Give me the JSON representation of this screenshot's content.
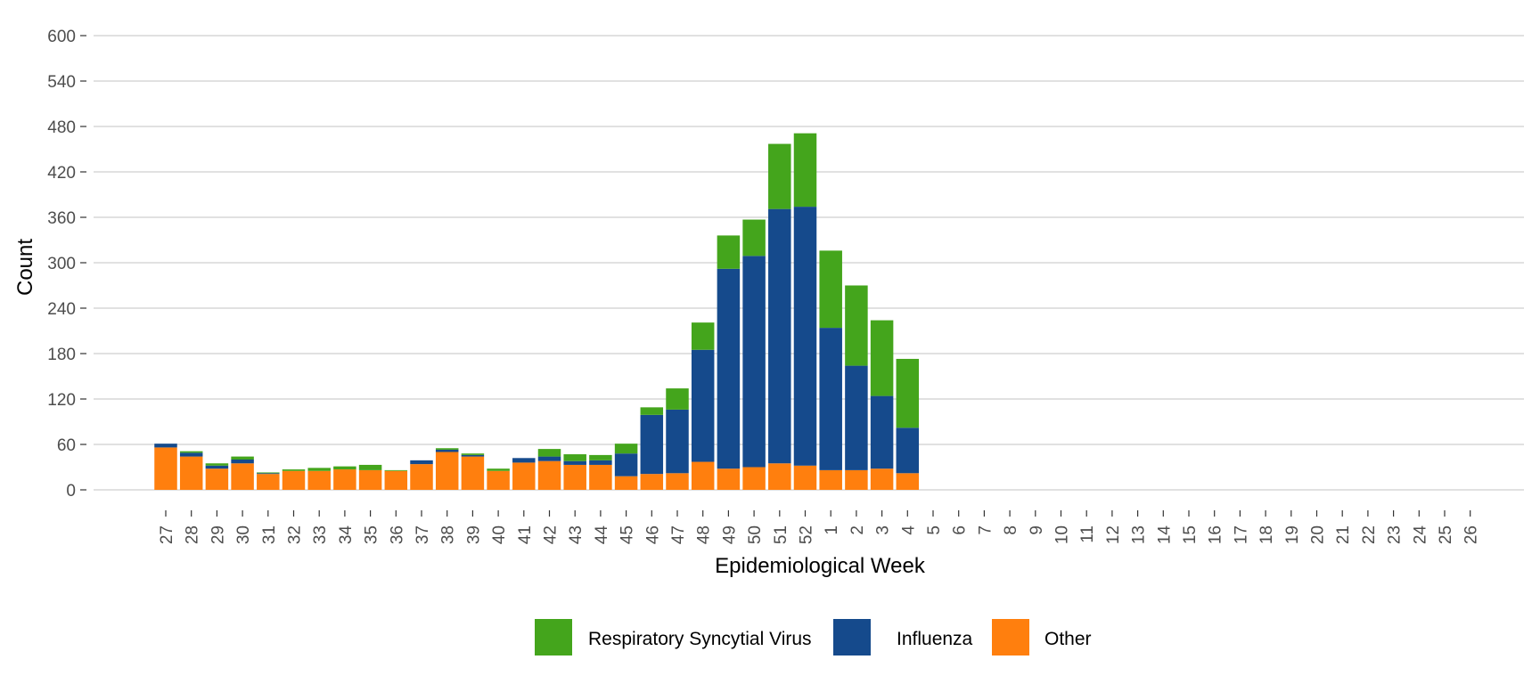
{
  "chart_data": {
    "type": "bar",
    "stacked": true,
    "title": "",
    "xlabel": "Epidemiological Week",
    "ylabel": "Count",
    "ylim": [
      0,
      600
    ],
    "yticks": [
      0,
      60,
      120,
      180,
      240,
      300,
      360,
      420,
      480,
      540,
      600
    ],
    "grid": true,
    "legend_position": "bottom",
    "categories": [
      "27",
      "28",
      "29",
      "30",
      "31",
      "32",
      "33",
      "34",
      "35",
      "36",
      "37",
      "38",
      "39",
      "40",
      "41",
      "42",
      "43",
      "44",
      "45",
      "46",
      "47",
      "48",
      "49",
      "50",
      "51",
      "52",
      "1",
      "2",
      "3",
      "4",
      "5",
      "6",
      "7",
      "8",
      "9",
      "10",
      "11",
      "12",
      "13",
      "14",
      "15",
      "16",
      "17",
      "18",
      "19",
      "20",
      "21",
      "22",
      "23",
      "24",
      "25",
      "26"
    ],
    "series": [
      {
        "name": "Other",
        "color": "#ff7f0e",
        "values": [
          56,
          44,
          28,
          35,
          21,
          25,
          25,
          27,
          26,
          25,
          34,
          50,
          44,
          25,
          36,
          38,
          33,
          33,
          18,
          21,
          22,
          37,
          28,
          30,
          35,
          32,
          26,
          26,
          28,
          22,
          null,
          null,
          null,
          null,
          null,
          null,
          null,
          null,
          null,
          null,
          null,
          null,
          null,
          null,
          null,
          null,
          null,
          null,
          null,
          null,
          null,
          null
        ]
      },
      {
        "name": "Influenza",
        "color": "#154a8c",
        "values": [
          5,
          5,
          4,
          5,
          1,
          0,
          0,
          0,
          0,
          0,
          5,
          3,
          2,
          0,
          6,
          6,
          5,
          6,
          30,
          78,
          84,
          148,
          264,
          279,
          336,
          342,
          188,
          138,
          96,
          60,
          null,
          null,
          null,
          null,
          null,
          null,
          null,
          null,
          null,
          null,
          null,
          null,
          null,
          null,
          null,
          null,
          null,
          null,
          null,
          null,
          null,
          null
        ]
      },
      {
        "name": "Respiratory Syncytial Virus",
        "color": "#44a51c",
        "values": [
          0,
          2,
          3,
          4,
          1,
          2,
          4,
          4,
          7,
          1,
          0,
          2,
          2,
          3,
          0,
          10,
          9,
          7,
          13,
          10,
          28,
          36,
          44,
          48,
          86,
          97,
          102,
          106,
          100,
          91,
          null,
          null,
          null,
          null,
          null,
          null,
          null,
          null,
          null,
          null,
          null,
          null,
          null,
          null,
          null,
          null,
          null,
          null,
          null,
          null,
          null,
          null
        ]
      }
    ]
  },
  "legend": {
    "items": [
      {
        "label": "Respiratory Syncytial Virus",
        "color": "#44a51c"
      },
      {
        "label": "Influenza",
        "color": "#154a8c"
      },
      {
        "label": "Other",
        "color": "#ff7f0e"
      }
    ]
  }
}
